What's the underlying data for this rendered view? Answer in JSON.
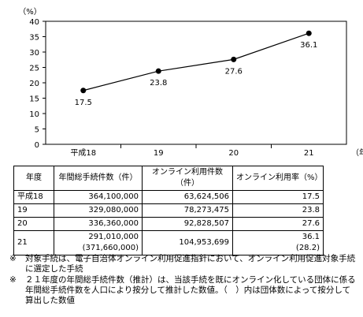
{
  "chart_data": {
    "type": "line",
    "y_unit_label": "（%）",
    "x_unit_label": "（年度）",
    "categories": [
      "平成18",
      "19",
      "20",
      "21"
    ],
    "values": [
      17.5,
      23.8,
      27.6,
      36.1
    ],
    "data_labels": [
      "17.5",
      "23.8",
      "27.6",
      "36.1"
    ],
    "ylim": [
      0,
      40
    ],
    "yticks": [
      "0",
      "5",
      "10",
      "15",
      "20",
      "25",
      "30",
      "35",
      "40"
    ],
    "grid": false,
    "series_color": "#000000"
  },
  "table": {
    "headers": [
      "年度",
      "年間総手続件数（件）",
      "オンライン利用件数（件）",
      "オンライン利用率（%）"
    ],
    "rows": [
      {
        "year": "平成18",
        "total": "364,100,000",
        "total_sub": "",
        "online": "63,624,506",
        "rate": "17.5",
        "rate_sub": ""
      },
      {
        "year": "19",
        "total": "329,080,000",
        "total_sub": "",
        "online": "78,273,475",
        "rate": "23.8",
        "rate_sub": ""
      },
      {
        "year": "20",
        "total": "336,360,000",
        "total_sub": "",
        "online": "92,828,507",
        "rate": "27.6",
        "rate_sub": ""
      },
      {
        "year": "21",
        "total": "291,010,000",
        "total_sub": "(371,660,000)",
        "online": "104,953,699",
        "rate": "36.1",
        "rate_sub": "(28.2)"
      }
    ]
  },
  "notes": [
    {
      "mark": "※",
      "text": "対象手続は、電子自治体オンライン利用促進指針において、オンライン利用促進対象手続に選定した手続"
    },
    {
      "mark": "※",
      "text": "２１年度の年間総手続件数（推計）は、当該手続を既にオンライン化している団体に係る年間総手続件数を人口により按分して推計した数値。（　）内は団体数によって按分して算出した数値"
    }
  ]
}
